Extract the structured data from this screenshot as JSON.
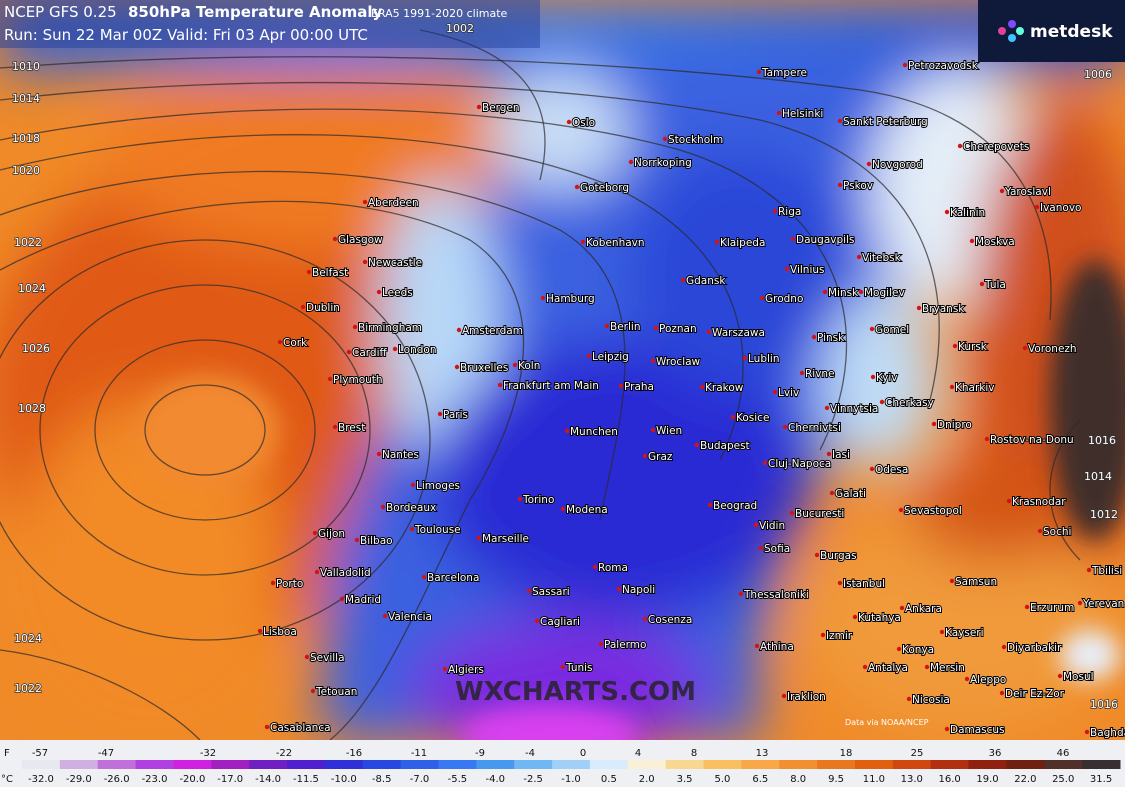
{
  "header": {
    "model": "NCEP GFS 0.25",
    "title": "850hPa Temperature Anomaly",
    "climate": "ERA5 1991-2020 climate",
    "run": "Run: Sun 22 Mar 00Z Valid: Fri 03 Apr 00:00 UTC"
  },
  "logo": "metdesk",
  "watermark": "WXCHARTS.COM",
  "credit": "Data via NOAA/NCEP",
  "isobars": [
    "1010",
    "1014",
    "1018",
    "1020",
    "1022",
    "1024",
    "1026",
    "1028",
    "1024",
    "1022",
    "1002",
    "1006",
    "1016",
    "1014",
    "1012",
    "1016"
  ],
  "cities": [
    "Tampere",
    "Petrozavodsk",
    "Helsinki",
    "Sankt Peterburg",
    "Oslo",
    "Bergen",
    "Stockholm",
    "Norrkoping",
    "Novgorod",
    "Cherepovets",
    "Goteborg",
    "Pskov",
    "Yaroslavl",
    "Ivanovo",
    "Riga",
    "Kalinin",
    "Aberdeen",
    "Kobenhavn",
    "Klaipeda",
    "Daugavpils",
    "Moskva",
    "Glasgow",
    "Vitebsk",
    "Belfast",
    "Newcastle",
    "Vilnius",
    "Gdansk",
    "Tula",
    "Leeds",
    "Hamburg",
    "Grodno",
    "Minsk",
    "Mogilev",
    "Bryansk",
    "Dublin",
    "Amsterdam",
    "Berlin",
    "Poznan",
    "Warszawa",
    "Birmingham",
    "Pinsk",
    "Gomel",
    "Cork",
    "Cardiff",
    "London",
    "Kursk",
    "Voronezh",
    "Leipzig",
    "Wroclaw",
    "Lublin",
    "Plymouth",
    "Bruxelles",
    "Koln",
    "Rivne",
    "Kyiv",
    "Frankfurt am Main",
    "Praha",
    "Krakow",
    "Lviv",
    "Kharkiv",
    "Paris",
    "Vinnytsia",
    "Cherkasy",
    "Brest",
    "Kosice",
    "Chernivtsi",
    "Dnipro",
    "Munchen",
    "Wien",
    "Budapest",
    "Rostov-na-Donu",
    "Nantes",
    "Graz",
    "Cluj-Napoca",
    "Iasi",
    "Odesa",
    "Limoges",
    "Galati",
    "Krasnodar",
    "Torino",
    "Beograd",
    "Sevastopol",
    "Bordeaux",
    "Modena",
    "Bucuresti",
    "Sochi",
    "Gijon",
    "Bilbao",
    "Toulouse",
    "Marseille",
    "Vidin",
    "Burgas",
    "Valladolid",
    "Barcelona",
    "Sofia",
    "Istanbul",
    "Samsun",
    "Tbilisi",
    "Porto",
    "Madrid",
    "Roma",
    "Thessaloniki",
    "Erzurum",
    "Yerevan",
    "Ankara",
    "Sassari",
    "Napoli",
    "Kutahya",
    "Kayseri",
    "Valencia",
    "Lisboa",
    "Cagliari",
    "Cosenza",
    "Izmir",
    "Diyarbakir",
    "Palermo",
    "Sevilla",
    "Athina",
    "Konya",
    "Mosul",
    "Antalya",
    "Mersin",
    "Aleppo",
    "Algiers",
    "Iraklion",
    "Tetouan",
    "Nicosia",
    "Deir Ez-Zor",
    "Casablanca",
    "Damascus",
    "Baghdad",
    "Tunis"
  ],
  "scale": {
    "f_unit": "F",
    "f_labels": [
      "-57",
      "-47",
      "-32",
      "-22",
      "-16",
      "-11",
      "-9",
      "-4",
      "0",
      "4",
      "8",
      "13",
      "18",
      "25",
      "36",
      "46"
    ],
    "c_unit": "°C",
    "c_labels": [
      "-32.0",
      "-29.0",
      "-26.0",
      "-23.0",
      "-20.0",
      "-17.0",
      "-14.0",
      "-11.5",
      "-10.0",
      "-8.5",
      "-7.0",
      "-5.5",
      "-4.0",
      "-2.5",
      "-1.0",
      "0.5",
      "2.0",
      "3.5",
      "5.0",
      "6.5",
      "8.0",
      "9.5",
      "11.0",
      "13.0",
      "16.0",
      "19.0",
      "22.0",
      "25.0",
      "31.5"
    ]
  }
}
